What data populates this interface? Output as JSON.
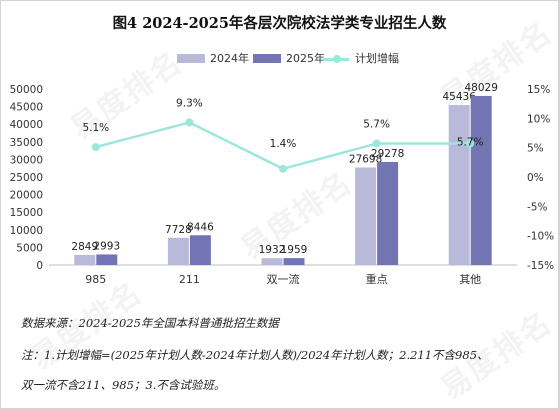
{
  "chart_data": {
    "type": "bar",
    "title": "图4  2024-2025年各层次院校法学类专业招生人数",
    "categories": [
      "985",
      "211",
      "双一流",
      "重点",
      "其他"
    ],
    "series": [
      {
        "name": "2024年",
        "values": [
          2849,
          7728,
          1932,
          27698,
          45436
        ],
        "color": "#b9bad9"
      },
      {
        "name": "2025年",
        "values": [
          2993,
          8446,
          1959,
          29278,
          48029
        ],
        "color": "#7274b4"
      }
    ],
    "line_series": {
      "name": "计划增幅",
      "values": [
        5.1,
        9.3,
        1.4,
        5.7,
        5.7
      ],
      "labels": [
        "5.1%",
        "9.3%",
        "1.4%",
        "5.7%",
        "5.7%"
      ],
      "color": "#9ee6dc",
      "axis": "right"
    },
    "y_left": {
      "min": 0,
      "max": 50000,
      "step": 5000,
      "ticks": [
        "0",
        "5000",
        "10000",
        "15000",
        "20000",
        "25000",
        "30000",
        "35000",
        "40000",
        "45000",
        "50000"
      ]
    },
    "y_right": {
      "min": -15,
      "max": 15,
      "step": 5,
      "ticks": [
        "-15%",
        "-10%",
        "-5%",
        "0%",
        "5%",
        "10%",
        "15%"
      ]
    },
    "legend_position": "top-center",
    "grid": false
  },
  "notes": {
    "source": "数据来源：2024-2025年全国本科普通批招生数据",
    "note_line1": "注：1.计划增幅=(2025年计划人数-2024年计划人数)/2024年计划人数；2.211不含985、",
    "note_line2": "双一流不含211、985；3.不含试验班。"
  },
  "watermark": {
    "text": "易度排名",
    "sub": "EDU Ranking.cn"
  }
}
